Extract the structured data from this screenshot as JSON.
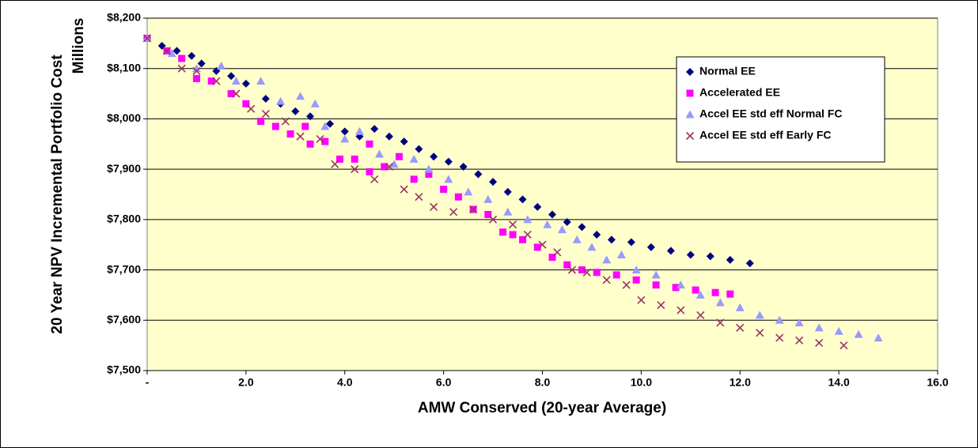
{
  "chart_data": {
    "type": "scatter",
    "x_label": "AMW Conserved (20-year Average)",
    "y_label": "20 Year NPV Incremental Portfolio Cost",
    "y_unit": "Millions",
    "xlim": [
      0,
      16
    ],
    "xticks": [
      {
        "value": 0,
        "label": "-"
      },
      {
        "value": 2,
        "label": "2.0"
      },
      {
        "value": 4,
        "label": "4.0"
      },
      {
        "value": 6,
        "label": "6.0"
      },
      {
        "value": 8,
        "label": "8.0"
      },
      {
        "value": 10,
        "label": "10.0"
      },
      {
        "value": 12,
        "label": "12.0"
      },
      {
        "value": 14,
        "label": "14.0"
      },
      {
        "value": 16,
        "label": "16.0"
      }
    ],
    "ylim": [
      7500,
      8200
    ],
    "yticks": [
      {
        "value": 7500,
        "label": "$7,500"
      },
      {
        "value": 7600,
        "label": "$7,600"
      },
      {
        "value": 7700,
        "label": "$7,700"
      },
      {
        "value": 7800,
        "label": "$7,800"
      },
      {
        "value": 7900,
        "label": "$7,900"
      },
      {
        "value": 8000,
        "label": "$8,000"
      },
      {
        "value": 8100,
        "label": "$8,100"
      },
      {
        "value": 8200,
        "label": "$8,200"
      }
    ],
    "grid": true,
    "legend": "upper-right",
    "series": [
      {
        "name": "Normal EE",
        "color": "#000080",
        "marker": "diamond",
        "x": [
          0,
          0.3,
          0.6,
          0.9,
          1.1,
          1.4,
          1.7,
          2.0,
          2.4,
          2.7,
          3.0,
          3.3,
          3.7,
          4.0,
          4.3,
          4.6,
          4.9,
          5.2,
          5.5,
          5.8,
          6.1,
          6.4,
          6.7,
          7.0,
          7.3,
          7.6,
          7.9,
          8.2,
          8.5,
          8.8,
          9.1,
          9.4,
          9.8,
          10.2,
          10.6,
          11.0,
          11.4,
          11.8,
          12.2
        ],
        "values": [
          8160,
          8145,
          8135,
          8125,
          8110,
          8095,
          8085,
          8070,
          8040,
          8030,
          8015,
          8005,
          7990,
          7975,
          7965,
          7980,
          7965,
          7955,
          7940,
          7925,
          7915,
          7905,
          7890,
          7875,
          7855,
          7840,
          7825,
          7810,
          7795,
          7785,
          7770,
          7760,
          7755,
          7745,
          7738,
          7730,
          7727,
          7720,
          7713
        ]
      },
      {
        "name": "Accelerated EE",
        "color": "#FF00FF",
        "marker": "square",
        "x": [
          0,
          0.4,
          0.7,
          1.0,
          1.3,
          1.7,
          2.0,
          2.3,
          2.6,
          2.9,
          3.2,
          3.3,
          3.6,
          3.9,
          4.2,
          4.5,
          4.5,
          4.8,
          5.1,
          5.4,
          5.7,
          6.0,
          6.3,
          6.6,
          6.9,
          7.2,
          7.4,
          7.6,
          7.9,
          8.2,
          8.5,
          8.8,
          9.1,
          9.5,
          9.9,
          10.3,
          10.7,
          11.1,
          11.5,
          11.8
        ],
        "values": [
          8160,
          8135,
          8120,
          8080,
          8075,
          8050,
          8030,
          7995,
          7985,
          7970,
          7985,
          7950,
          7955,
          7920,
          7920,
          7950,
          7895,
          7905,
          7925,
          7880,
          7890,
          7860,
          7845,
          7820,
          7810,
          7775,
          7770,
          7760,
          7745,
          7725,
          7710,
          7700,
          7695,
          7690,
          7680,
          7670,
          7665,
          7660,
          7655,
          7652
        ]
      },
      {
        "name": "Accel EE std eff Normal FC",
        "color": "#9999FF",
        "marker": "triangle",
        "x": [
          0,
          0.5,
          1.0,
          1.5,
          1.8,
          2.3,
          2.7,
          3.1,
          3.4,
          3.6,
          4.0,
          4.3,
          4.7,
          5.0,
          5.4,
          5.7,
          6.1,
          6.5,
          6.9,
          7.3,
          7.7,
          8.1,
          8.4,
          8.7,
          9.0,
          9.3,
          9.6,
          9.9,
          10.3,
          10.8,
          11.2,
          11.6,
          12.0,
          12.4,
          12.8,
          13.2,
          13.6,
          14.0,
          14.4,
          14.8
        ],
        "values": [
          8160,
          8130,
          8100,
          8105,
          8075,
          8075,
          8035,
          8045,
          8030,
          7985,
          7960,
          7975,
          7930,
          7910,
          7920,
          7900,
          7880,
          7855,
          7840,
          7815,
          7800,
          7790,
          7780,
          7760,
          7745,
          7720,
          7730,
          7700,
          7690,
          7670,
          7650,
          7635,
          7625,
          7610,
          7600,
          7595,
          7585,
          7578,
          7572,
          7565
        ]
      },
      {
        "name": "Accel EE std eff Early FC",
        "color": "#993366",
        "marker": "x",
        "x": [
          0,
          0.4,
          0.7,
          1.0,
          1.4,
          1.8,
          2.1,
          2.4,
          2.8,
          3.1,
          3.5,
          3.8,
          4.2,
          4.6,
          4.9,
          5.2,
          5.5,
          5.8,
          6.2,
          6.6,
          7.0,
          7.4,
          7.7,
          8.0,
          8.3,
          8.6,
          8.9,
          9.3,
          9.7,
          10.0,
          10.4,
          10.8,
          11.2,
          11.6,
          12.0,
          12.4,
          12.8,
          13.2,
          13.6,
          14.1
        ],
        "values": [
          8160,
          8135,
          8100,
          8095,
          8075,
          8050,
          8020,
          8010,
          7995,
          7965,
          7960,
          7910,
          7900,
          7880,
          7905,
          7860,
          7845,
          7825,
          7815,
          7820,
          7800,
          7790,
          7770,
          7750,
          7735,
          7700,
          7695,
          7680,
          7670,
          7640,
          7630,
          7620,
          7610,
          7595,
          7585,
          7575,
          7565,
          7560,
          7555,
          7550
        ]
      }
    ]
  }
}
